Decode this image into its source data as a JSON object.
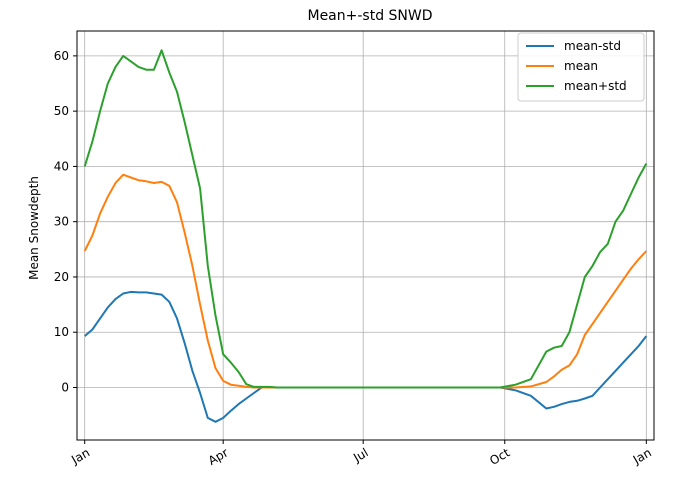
{
  "chart_data": {
    "type": "line",
    "title": "Mean+-std   SNWD",
    "xlabel": "",
    "ylabel": "Mean Snowdepth",
    "xlim": [
      -5,
      370
    ],
    "ylim": [
      -9.5,
      64.5
    ],
    "x_ticks": [
      {
        "value": 0,
        "label": "Jan"
      },
      {
        "value": 90,
        "label": "Apr"
      },
      {
        "value": 181,
        "label": "Jul"
      },
      {
        "value": 273,
        "label": "Oct"
      },
      {
        "value": 365,
        "label": "Jan"
      }
    ],
    "y_ticks": [
      0,
      10,
      20,
      30,
      40,
      50,
      60
    ],
    "grid": true,
    "legend_position": "top-right",
    "x": [
      0,
      5,
      10,
      15,
      20,
      25,
      30,
      35,
      40,
      45,
      50,
      55,
      60,
      65,
      70,
      75,
      80,
      85,
      90,
      95,
      100,
      105,
      110,
      115,
      120,
      125,
      130,
      135,
      140,
      150,
      180,
      210,
      240,
      270,
      280,
      290,
      300,
      305,
      310,
      315,
      320,
      325,
      330,
      335,
      340,
      345,
      350,
      355,
      360,
      365
    ],
    "series": [
      {
        "name": "mean-std",
        "color": "#1f77b4",
        "values": [
          9.3,
          10.5,
          12.5,
          14.5,
          16.0,
          17.0,
          17.3,
          17.2,
          17.2,
          17.0,
          16.8,
          15.5,
          12.5,
          8.0,
          3.0,
          -1.0,
          -5.5,
          -6.2,
          -5.5,
          -4.2,
          -3.0,
          -2.0,
          -1.0,
          0.0,
          0.0,
          0.0,
          0.0,
          0.0,
          0.0,
          0.0,
          0.0,
          0.0,
          0.0,
          0.0,
          -0.5,
          -1.5,
          -3.8,
          -3.5,
          -3.0,
          -2.6,
          -2.4,
          -2.0,
          -1.5,
          0.0,
          1.5,
          3.0,
          4.5,
          6.0,
          7.5,
          9.3
        ]
      },
      {
        "name": "mean",
        "color": "#ff7f0e",
        "values": [
          24.7,
          27.5,
          31.5,
          34.5,
          37.0,
          38.5,
          38.0,
          37.5,
          37.3,
          37.0,
          37.2,
          36.5,
          33.5,
          28.0,
          22.0,
          15.0,
          8.5,
          3.5,
          1.2,
          0.5,
          0.3,
          0.1,
          0.0,
          0.0,
          0.0,
          0.0,
          0.0,
          0.0,
          0.0,
          0.0,
          0.0,
          0.0,
          0.0,
          0.0,
          0.0,
          0.2,
          1.0,
          2.0,
          3.2,
          4.0,
          6.0,
          9.5,
          11.5,
          13.5,
          15.5,
          17.5,
          19.5,
          21.5,
          23.2,
          24.7
        ]
      },
      {
        "name": "mean+std",
        "color": "#2ca02c",
        "values": [
          40.0,
          44.5,
          50.0,
          55.0,
          58.0,
          60.0,
          59.0,
          58.0,
          57.5,
          57.5,
          61.0,
          57.0,
          53.5,
          48.0,
          42.0,
          36.0,
          22.0,
          13.0,
          6.0,
          4.5,
          2.8,
          0.6,
          0.1,
          0.1,
          0.1,
          0.0,
          0.0,
          0.0,
          0.0,
          0.0,
          0.0,
          0.0,
          0.0,
          0.0,
          0.5,
          1.5,
          6.5,
          7.2,
          7.5,
          10.0,
          15.0,
          20.0,
          22.0,
          24.5,
          26.0,
          30.0,
          32.0,
          35.0,
          38.0,
          40.5
        ]
      }
    ]
  }
}
